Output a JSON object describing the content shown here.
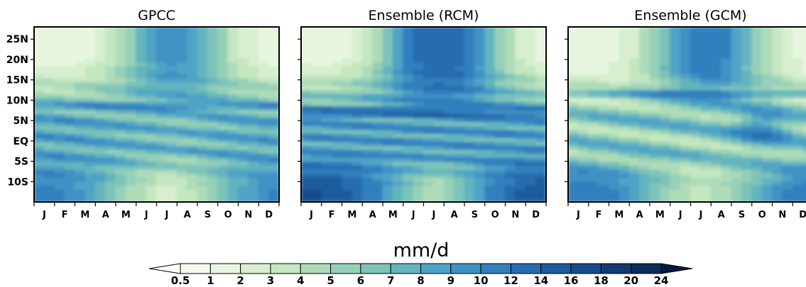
{
  "chart_data": {
    "type": "heatmap",
    "panels": [
      {
        "title": "GPCC",
        "show_yticks": true
      },
      {
        "title": "Ensemble (RCM)",
        "show_yticks": false
      },
      {
        "title": "Ensemble (GCM)",
        "show_yticks": false
      }
    ],
    "months": [
      "J",
      "F",
      "M",
      "A",
      "M",
      "J",
      "J",
      "A",
      "S",
      "O",
      "N",
      "D"
    ],
    "lat_ticks": [
      "25N",
      "20N",
      "15N",
      "10N",
      "5N",
      "EQ",
      "5S",
      "10S"
    ],
    "lat_tick_values": [
      25,
      20,
      15,
      10,
      5,
      0,
      -5,
      -10
    ],
    "lat_range": [
      -15,
      28
    ],
    "units": "mm/d",
    "colorbar_levels": [
      "0.5",
      "1",
      "2",
      "3",
      "4",
      "5",
      "6",
      "7",
      "8",
      "9",
      "10",
      "12",
      "14",
      "16",
      "18",
      "20",
      "24"
    ],
    "colors": [
      "#ffffff",
      "#f4fbee",
      "#e8f6e0",
      "#d7efcf",
      "#c4e7c0",
      "#aedcb9",
      "#96d0b8",
      "#7dc3ba",
      "#63b4be",
      "#4fa3c6",
      "#3f91c4",
      "#327fbd",
      "#276cae",
      "#1f5b9c",
      "#184b89",
      "#123b72",
      "#0b2c5a",
      "#051a3f"
    ]
  }
}
